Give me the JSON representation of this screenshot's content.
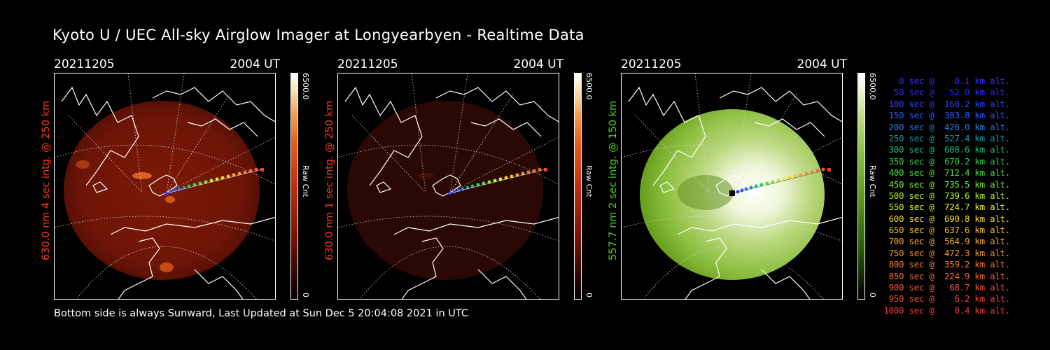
{
  "title": "Kyoto U / UEC All-sky Airglow Imager at Longyearbyen - Realtime Data",
  "footer": "Bottom side is always Sunward, Last Updated at Sun Dec  5 20:04:08 2021 in UTC",
  "panels": [
    {
      "date": "20211205",
      "time": "2004 UT",
      "ylabel": "630.0 nm 4 sec intg. @ 250 km",
      "label_color": "#ff3b1f",
      "cbar_max": "6500.0",
      "cbar_unit": "Raw Cnt",
      "cbar_min": "0"
    },
    {
      "date": "20211205",
      "time": "2004 UT",
      "ylabel": "630.0 nm 1 sec intg. @ 250 km",
      "label_color": "#ff3b1f",
      "cbar_max": "6500.0",
      "cbar_unit": "Raw Cnt",
      "cbar_min": "0"
    },
    {
      "date": "20211205",
      "time": "2004 UT",
      "ylabel": "557.7 nm 2 sec intg. @ 150 km",
      "label_color": "#4fd21f",
      "cbar_max": "6500.0",
      "cbar_unit": "Raw Cnt",
      "cbar_min": "0"
    }
  ],
  "legend": [
    {
      "text": "   0 sec @    0.1 km alt.",
      "color": "#3030ff"
    },
    {
      "text": "  50 sec @   52.0 km alt.",
      "color": "#2a2aff"
    },
    {
      "text": " 100 sec @  160.2 km alt.",
      "color": "#2a40ff"
    },
    {
      "text": " 150 sec @  303.8 km alt.",
      "color": "#2a5aff"
    },
    {
      "text": " 200 sec @  426.0 km alt.",
      "color": "#2a78e8"
    },
    {
      "text": " 250 sec @  527.4 km alt.",
      "color": "#1e9aa8"
    },
    {
      "text": " 300 sec @  608.6 km alt.",
      "color": "#1eb878"
    },
    {
      "text": " 350 sec @  670.2 km alt.",
      "color": "#2ed04a"
    },
    {
      "text": " 400 sec @  712.4 km alt.",
      "color": "#4ee03a"
    },
    {
      "text": " 450 sec @  735.5 km alt.",
      "color": "#7aec30"
    },
    {
      "text": " 500 sec @  739.6 km alt.",
      "color": "#b2f02a"
    },
    {
      "text": " 550 sec @  724.7 km alt.",
      "color": "#e4f02a"
    },
    {
      "text": " 600 sec @  690.8 km alt.",
      "color": "#f2d82a"
    },
    {
      "text": " 650 sec @  637.6 km alt.",
      "color": "#f6be2a"
    },
    {
      "text": " 700 sec @  564.9 km alt.",
      "color": "#f6a62a"
    },
    {
      "text": " 750 sec @  472.3 km alt.",
      "color": "#f69030"
    },
    {
      "text": " 800 sec @  359.2 km alt.",
      "color": "#f67a34"
    },
    {
      "text": " 850 sec @  224.9 km alt.",
      "color": "#f06838"
    },
    {
      "text": " 900 sec @   68.7 km alt.",
      "color": "#ee5838"
    },
    {
      "text": " 950 sec @    6.2 km alt.",
      "color": "#ec4a36"
    },
    {
      "text": "1000 sec @    0.4 km alt.",
      "color": "#ea3c32"
    }
  ]
}
